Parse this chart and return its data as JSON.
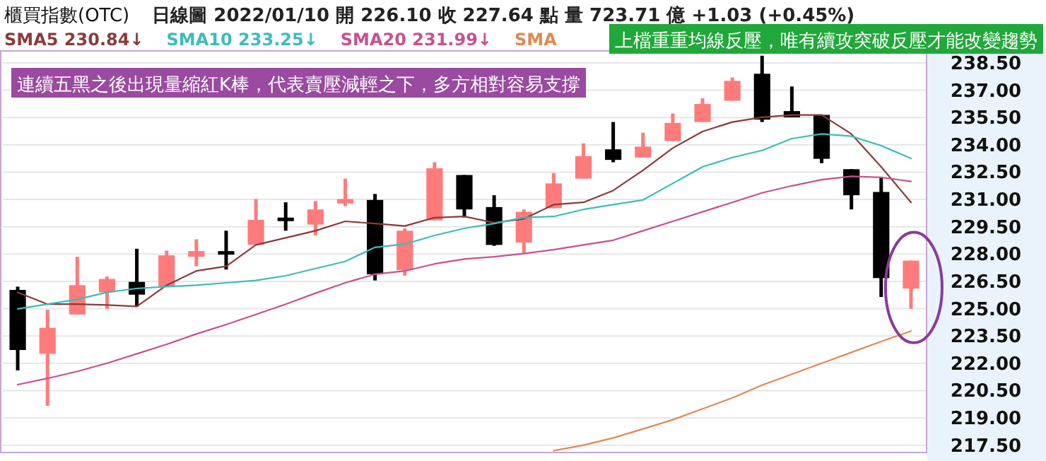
{
  "chart_data": {
    "type": "candlestick",
    "title": "櫃買指數(OTC)",
    "subtitle": "日線圖  2022/01/10  開 226.10  收 227.64 點  量 723.71 億  +1.03 (+0.45%)",
    "categories": [
      null,
      null,
      null,
      null,
      null,
      null,
      null,
      null,
      null,
      null,
      null,
      null,
      null,
      null,
      null,
      null,
      null,
      null,
      null,
      null,
      null,
      null,
      null,
      null,
      null,
      null,
      null,
      null,
      null,
      null,
      null
    ],
    "ohlc": [
      [
        226.03,
        226.21,
        221.61,
        222.73
      ],
      [
        222.52,
        224.94,
        219.66,
        223.95
      ],
      [
        224.68,
        227.85,
        224.68,
        226.29
      ],
      [
        225.9,
        226.76,
        224.99,
        226.63
      ],
      [
        226.47,
        228.29,
        225.12,
        225.77
      ],
      [
        226.21,
        228.19,
        226.21,
        227.93
      ],
      [
        227.85,
        228.81,
        227.33,
        228.16
      ],
      [
        228.16,
        229.28,
        227.15,
        228.0
      ],
      [
        228.5,
        231.02,
        228.5,
        229.88
      ],
      [
        230.0,
        230.84,
        229.28,
        229.85
      ],
      [
        229.62,
        230.91,
        229.02,
        230.45
      ],
      [
        230.78,
        232.14,
        230.63,
        231.02
      ],
      [
        230.97,
        231.3,
        226.55,
        226.89
      ],
      [
        227.12,
        229.41,
        226.81,
        229.28
      ],
      [
        229.85,
        233.04,
        229.85,
        232.71
      ],
      [
        232.34,
        232.34,
        230.01,
        230.45
      ],
      [
        230.58,
        231.23,
        228.45,
        228.5
      ],
      [
        228.63,
        230.45,
        228.06,
        230.32
      ],
      [
        230.52,
        232.45,
        230.52,
        231.88
      ],
      [
        232.14,
        234.08,
        232.14,
        233.38
      ],
      [
        233.75,
        235.25,
        233.04,
        233.17
      ],
      [
        233.3,
        234.66,
        233.3,
        233.9
      ],
      [
        234.21,
        235.72,
        234.21,
        235.2
      ],
      [
        235.25,
        236.55,
        235.25,
        236.24
      ],
      [
        236.42,
        237.7,
        236.42,
        237.51
      ],
      [
        237.9,
        238.89,
        235.25,
        235.38
      ],
      [
        235.85,
        237.2,
        235.51,
        235.51
      ],
      [
        235.64,
        235.64,
        232.99,
        233.23
      ],
      [
        232.66,
        232.66,
        230.45,
        231.23
      ],
      [
        231.41,
        232.21,
        225.64,
        226.68
      ],
      [
        226.1,
        227.64,
        224.99,
        227.64
      ]
    ],
    "colors": [
      "#000000",
      "#ff7b7b",
      "#ff7b7b",
      "#ff7b7b",
      "#000000",
      "#ff7b7b",
      "#ff7b7b",
      "#000000",
      "#ff7b7b",
      "#000000",
      "#ff7b7b",
      "#ff7b7b",
      "#000000",
      "#ff7b7b",
      "#ff7b7b",
      "#000000",
      "#000000",
      "#ff7b7b",
      "#ff7b7b",
      "#ff7b7b",
      "#000000",
      "#ff7b7b",
      "#ff7b7b",
      "#ff7b7b",
      "#ff7b7b",
      "#000000",
      "#000000",
      "#000000",
      "#000000",
      "#000000",
      "#ff7b7b"
    ],
    "series": [
      {
        "name": "SMA5 230.84↓",
        "type": "line",
        "color": "#8b3a3a",
        "values": [
          225.9,
          225.25,
          225.25,
          225.2,
          225.12,
          226.29,
          227.07,
          227.33,
          228.5,
          228.89,
          229.28,
          229.8,
          229.67,
          229.54,
          230.0,
          230.06,
          229.72,
          229.93,
          230.71,
          230.84,
          231.49,
          232.6,
          233.82,
          234.73,
          235.25,
          235.51,
          235.64,
          235.64,
          234.6,
          232.79,
          230.84
        ]
      },
      {
        "name": "SMA10 233.25↓",
        "type": "line",
        "color": "#3cbcbc",
        "values": [
          224.99,
          225.25,
          225.51,
          225.9,
          226.11,
          226.21,
          226.29,
          226.42,
          226.55,
          226.81,
          227.2,
          227.59,
          228.37,
          228.55,
          229.02,
          229.41,
          229.67,
          230.01,
          230.06,
          230.45,
          230.71,
          230.97,
          231.88,
          232.79,
          233.3,
          233.69,
          234.34,
          234.6,
          234.47,
          233.95,
          233.25
        ]
      },
      {
        "name": "SMA20 231.99↓",
        "type": "line",
        "color": "#c8508f",
        "values": [
          220.83,
          221.17,
          221.56,
          222.0,
          222.52,
          223.04,
          223.61,
          224.13,
          224.68,
          225.25,
          225.85,
          226.42,
          226.89,
          227.07,
          227.46,
          227.72,
          227.85,
          228.03,
          228.24,
          228.5,
          228.76,
          229.28,
          229.8,
          230.32,
          230.84,
          231.36,
          231.75,
          232.08,
          232.27,
          232.21,
          231.99
        ]
      },
      {
        "name": "SMA",
        "type": "line",
        "color": "#e08a50",
        "values": [
          null,
          null,
          null,
          null,
          null,
          null,
          null,
          null,
          null,
          null,
          null,
          null,
          null,
          null,
          null,
          null,
          null,
          null,
          217.2,
          217.5,
          217.9,
          218.4,
          218.9,
          219.5,
          220.1,
          220.8,
          221.4,
          222.0,
          222.6,
          223.2,
          223.77
        ]
      }
    ],
    "ylim": [
      217.1,
      239.0
    ],
    "yticks": [
      {
        "value": 217.5,
        "label": "217.50"
      },
      {
        "value": 219,
        "label": "219.00"
      },
      {
        "value": 220.5,
        "label": "220.50"
      },
      {
        "value": 222,
        "label": "222.00"
      },
      {
        "value": 223.5,
        "label": "223.50"
      },
      {
        "value": 225,
        "label": "225.00"
      },
      {
        "value": 226.5,
        "label": "226.50"
      },
      {
        "value": 228,
        "label": "228.00"
      },
      {
        "value": 229.5,
        "label": "229.50"
      },
      {
        "value": 231,
        "label": "231.00"
      },
      {
        "value": 232.5,
        "label": "232.50"
      },
      {
        "value": 234,
        "label": "234.00"
      },
      {
        "value": 235.5,
        "label": "235.50"
      },
      {
        "value": 237,
        "label": "237.00"
      },
      {
        "value": 238.5,
        "label": "238.50"
      }
    ],
    "grid": "y",
    "legend": "top left",
    "tick_labels": "y",
    "annotations": [
      "上檔重重均線反壓，唯有續攻突破反壓才能改變趨勢",
      "連續五黑之後出現量縮紅K棒，代表賣壓減輕之下，多方相對容易支撐"
    ]
  }
}
